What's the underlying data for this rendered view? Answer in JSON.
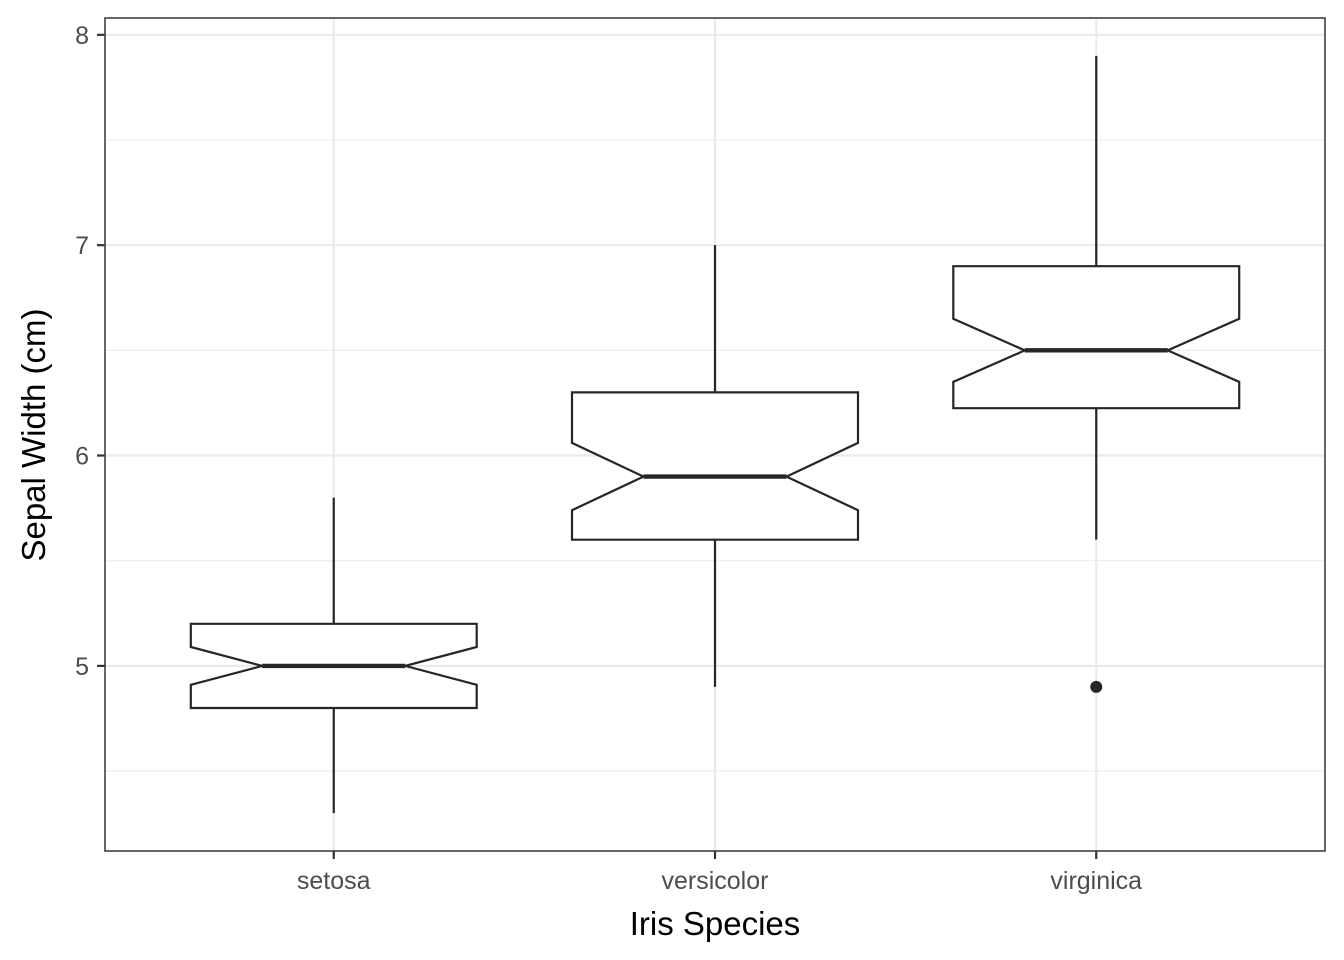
{
  "chart_data": {
    "type": "boxplot",
    "notched": true,
    "xlabel": "Iris Species",
    "ylabel": "Sepal Width (cm)",
    "ylim": [
      4.12,
      8.08
    ],
    "yticks": [
      5,
      6,
      7,
      8
    ],
    "yticks_minor": [
      4.5,
      5.5,
      6.5,
      7.5
    ],
    "categories": [
      "setosa",
      "versicolor",
      "virginica"
    ],
    "boxes": [
      {
        "category": "setosa",
        "lower_whisker": 4.3,
        "q1": 4.8,
        "median": 5.0,
        "q3": 5.2,
        "upper_whisker": 5.8,
        "notch_low": 4.91,
        "notch_high": 5.09,
        "outliers": []
      },
      {
        "category": "versicolor",
        "lower_whisker": 4.9,
        "q1": 5.6,
        "median": 5.9,
        "q3": 6.3,
        "upper_whisker": 7.0,
        "notch_low": 5.74,
        "notch_high": 6.06,
        "outliers": []
      },
      {
        "category": "virginica",
        "lower_whisker": 5.6,
        "q1": 6.225,
        "median": 6.5,
        "q3": 6.9,
        "upper_whisker": 7.9,
        "notch_low": 6.35,
        "notch_high": 6.65,
        "outliers": [
          4.9
        ]
      }
    ],
    "grid": true,
    "legend": "none",
    "colors": {
      "box_fill": "#ffffff",
      "box_stroke": "#262626",
      "grid": "#ebebeb"
    }
  }
}
